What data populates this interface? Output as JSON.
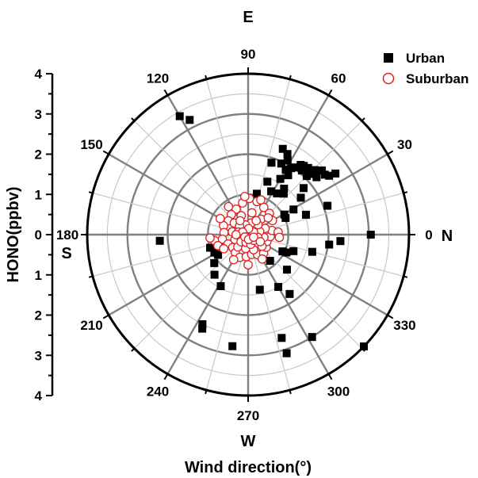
{
  "chart_data": {
    "type": "scatter",
    "coordinate_system": "polar",
    "xlabel": "Wind direction(°)",
    "ylabel": "HONO(ppbv)",
    "angle_unit": "degrees",
    "radial_range": [
      0,
      4
    ],
    "radial_ticks": [
      "0",
      "1",
      "2",
      "3",
      "4"
    ],
    "y_axis_ticks": [
      "4",
      "3",
      "2",
      "1",
      "0",
      "1",
      "2",
      "3",
      "4"
    ],
    "angle_ticks": [
      "0",
      "30",
      "60",
      "90",
      "120",
      "150",
      "180",
      "210",
      "240",
      "270",
      "300",
      "330"
    ],
    "compass_labels": {
      "east": "E",
      "north": "N",
      "west": "W",
      "south": "S"
    },
    "grid": true,
    "legend_position": "top-right",
    "series": [
      {
        "name": "Urban",
        "marker": "filled-square",
        "color": "#000000",
        "points": [
          [
            35,
            2.65
          ],
          [
            36,
            2.49
          ],
          [
            38,
            2.42
          ],
          [
            40,
            2.22
          ],
          [
            41,
            2.43
          ],
          [
            43,
            2.21
          ],
          [
            44,
            2.31
          ],
          [
            45,
            2.06
          ],
          [
            47,
            2.19
          ],
          [
            48,
            2.23
          ],
          [
            50,
            2.08
          ],
          [
            51,
            2.2
          ],
          [
            53,
            2.17
          ],
          [
            55,
            2.04
          ],
          [
            57,
            1.97
          ],
          [
            60,
            1.87
          ],
          [
            62,
            2.09
          ],
          [
            65,
            1.95
          ],
          [
            64,
            2.23
          ],
          [
            68,
            2.3
          ],
          [
            72,
            1.88
          ],
          [
            56,
            1.78
          ],
          [
            60,
            1.6
          ],
          [
            70,
            1.4
          ],
          [
            62,
            1.22
          ],
          [
            78,
            1.04
          ],
          [
            40,
            1.8
          ],
          [
            52,
            1.45
          ],
          [
            49,
            1.35
          ],
          [
            55,
            1.25
          ],
          [
            35,
            1.6
          ],
          [
            29,
            1.29
          ],
          [
            29,
            1.03
          ],
          [
            24,
            1.02
          ],
          [
            19,
            1.52
          ],
          [
            20,
            2.1
          ],
          [
            0,
            3.05
          ],
          [
            -4,
            2.3
          ],
          [
            -7,
            2.03
          ],
          [
            -15,
            1.65
          ],
          [
            -20,
            1.2
          ],
          [
            -25,
            1.05
          ],
          [
            -26,
            0.95
          ],
          [
            -42,
            1.3
          ],
          [
            -50,
            0.85
          ],
          [
            -55,
            1.8
          ],
          [
            -60,
            1.5
          ],
          [
            -78,
            1.4
          ],
          [
            -72,
            2.7
          ],
          [
            -72,
            3.1
          ],
          [
            -58,
            3.0
          ],
          [
            -44,
            4.0
          ],
          [
            -98,
            2.8
          ],
          [
            -116,
            2.6
          ],
          [
            -117,
            2.5
          ],
          [
            -118,
            1.45
          ],
          [
            -130,
            1.3
          ],
          [
            -140,
            1.1
          ],
          [
            -146,
            0.9
          ],
          [
            -152,
            0.95
          ],
          [
            -161,
            1.0
          ],
          [
            -165,
            0.75
          ],
          [
            -176,
            2.2
          ],
          [
            120,
            3.4
          ],
          [
            117,
            3.2
          ]
        ]
      },
      {
        "name": "Suburban",
        "marker": "open-circle",
        "color": "#e02020",
        "points": [
          [
            88,
            0.9
          ],
          [
            75,
            0.85
          ],
          [
            100,
            0.8
          ],
          [
            60,
            0.78
          ],
          [
            45,
            0.75
          ],
          [
            30,
            0.7
          ],
          [
            115,
            0.7
          ],
          [
            130,
            0.65
          ],
          [
            145,
            0.6
          ],
          [
            160,
            0.65
          ],
          [
            175,
            0.6
          ],
          [
            190,
            0.65
          ],
          [
            205,
            0.55
          ],
          [
            220,
            0.5
          ],
          [
            235,
            0.55
          ],
          [
            250,
            0.6
          ],
          [
            265,
            0.55
          ],
          [
            280,
            0.5
          ],
          [
            295,
            0.55
          ],
          [
            310,
            0.6
          ],
          [
            325,
            0.55
          ],
          [
            340,
            0.5
          ],
          [
            355,
            0.55
          ],
          [
            10,
            0.6
          ],
          [
            20,
            0.45
          ],
          [
            50,
            0.5
          ],
          [
            80,
            0.55
          ],
          [
            110,
            0.5
          ],
          [
            140,
            0.45
          ],
          [
            170,
            0.4
          ],
          [
            200,
            0.35
          ],
          [
            230,
            0.4
          ],
          [
            260,
            0.35
          ],
          [
            290,
            0.4
          ],
          [
            320,
            0.45
          ],
          [
            350,
            0.4
          ],
          [
            15,
            0.3
          ],
          [
            45,
            0.35
          ],
          [
            75,
            0.3
          ],
          [
            105,
            0.25
          ],
          [
            135,
            0.3
          ],
          [
            165,
            0.25
          ],
          [
            195,
            0.2
          ],
          [
            225,
            0.25
          ],
          [
            255,
            0.2
          ],
          [
            285,
            0.25
          ],
          [
            315,
            0.2
          ],
          [
            345,
            0.25
          ],
          [
            25,
            0.15
          ],
          [
            85,
            0.15
          ],
          [
            155,
            0.15
          ],
          [
            215,
            0.1
          ],
          [
            275,
            0.12
          ],
          [
            335,
            0.15
          ],
          [
            190,
            0.85
          ],
          [
            185,
            0.95
          ],
          [
            200,
            0.8
          ],
          [
            95,
            0.95
          ],
          [
            70,
            0.92
          ],
          [
            40,
            0.65
          ],
          [
            5,
            0.75
          ],
          [
            355,
            0.78
          ],
          [
            300,
            0.7
          ],
          [
            270,
            0.75
          ],
          [
            240,
            0.72
          ],
          [
            210,
            0.7
          ],
          [
            150,
            0.8
          ],
          [
            125,
            0.85
          ],
          [
            60,
            0.4
          ],
          [
            330,
            0.35
          ],
          [
            120,
            0.4
          ],
          [
            180,
            0.3
          ]
        ]
      }
    ]
  }
}
